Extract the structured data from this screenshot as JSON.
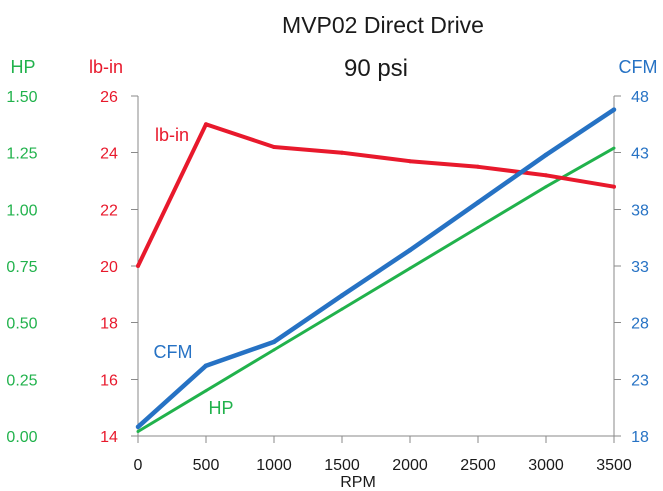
{
  "chart_data": {
    "type": "line",
    "title": "MVP02 Direct Drive",
    "subtitle": "90 psi",
    "xlabel": "RPM",
    "xlim": [
      0,
      3500
    ],
    "x": [
      0,
      500,
      1000,
      1500,
      2000,
      2500,
      3000,
      3500
    ],
    "x_ticks": [
      "0",
      "500",
      "1000",
      "1500",
      "2000",
      "2500",
      "3000",
      "3500"
    ],
    "grid": false,
    "legend": "none",
    "series": [
      {
        "name": "HP",
        "color": "#21b24c",
        "values": [
          0.02,
          0.2,
          0.38,
          0.56,
          0.74,
          0.92,
          1.1,
          1.27
        ],
        "y_axis": {
          "label": "HP",
          "side": "left",
          "ylim": [
            0,
            1.5
          ],
          "ticks": [
            "0.00",
            "0.25",
            "0.50",
            "0.75",
            "1.00",
            "1.25",
            "1.50"
          ]
        }
      },
      {
        "name": "lb-in",
        "color": "#e8192c",
        "values": [
          20.0,
          25.0,
          24.2,
          24.0,
          23.7,
          23.5,
          23.2,
          22.8
        ],
        "y_axis": {
          "label": "lb-in",
          "side": "left",
          "ylim": [
            14,
            26
          ],
          "ticks": [
            "14",
            "16",
            "18",
            "20",
            "22",
            "24",
            "26"
          ]
        }
      },
      {
        "name": "CFM",
        "color": "#2672c4",
        "values": [
          18.8,
          24.2,
          26.3,
          30.4,
          34.4,
          38.6,
          42.8,
          46.8
        ],
        "y_axis": {
          "label": "CFM",
          "side": "right",
          "ylim": [
            18,
            48
          ],
          "ticks": [
            "18",
            "23",
            "28",
            "33",
            "38",
            "43",
            "48"
          ]
        }
      }
    ]
  }
}
